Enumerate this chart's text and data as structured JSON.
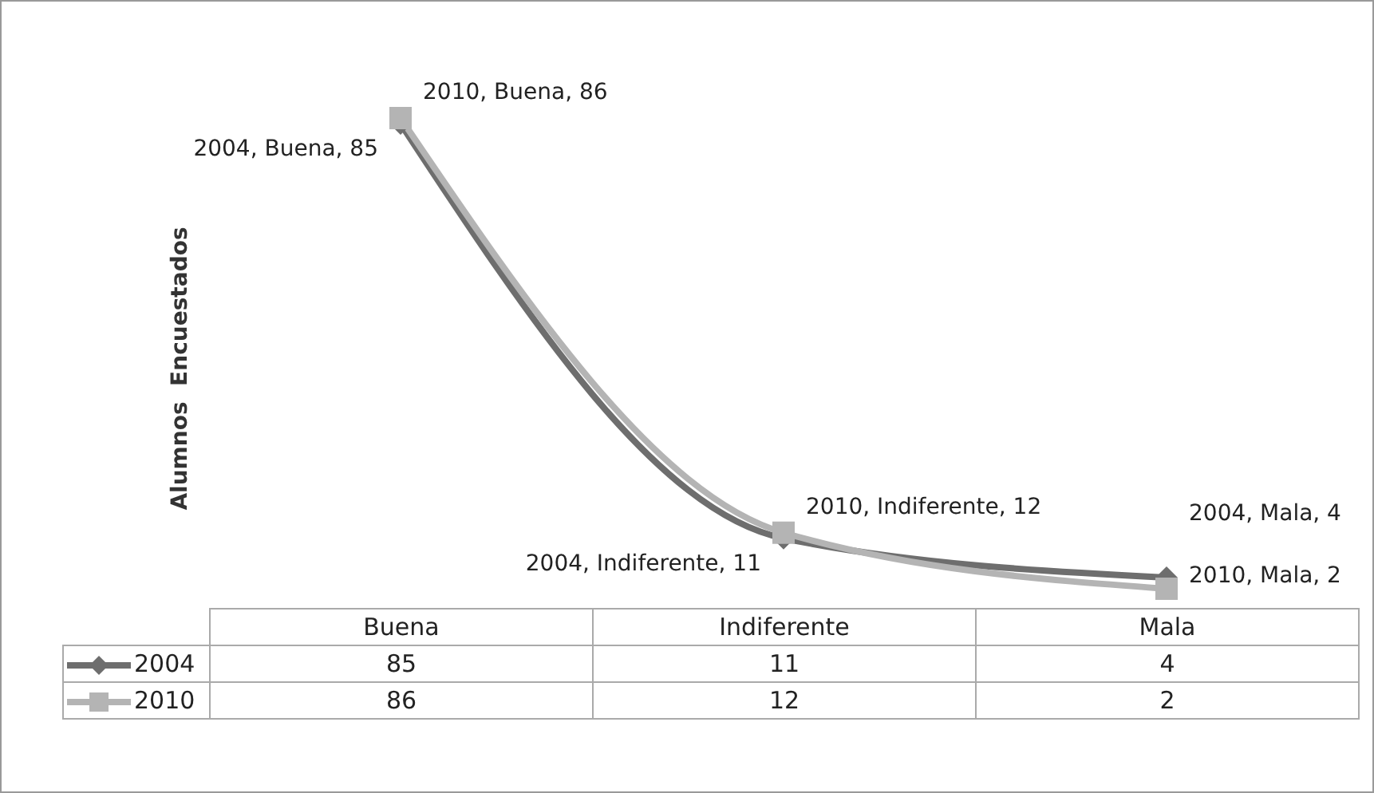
{
  "chart_data": {
    "type": "line",
    "ylabel": "Alumnos  Encuestados",
    "categories": [
      "Buena",
      "Indiferente",
      "Mala"
    ],
    "series": [
      {
        "name": "2004",
        "color": "#6e6e6e",
        "marker": "diamond",
        "values": [
          85,
          11,
          4
        ]
      },
      {
        "name": "2010",
        "color": "#b4b4b4",
        "marker": "square",
        "values": [
          86,
          12,
          2
        ]
      }
    ],
    "annotations": [
      {
        "text": "2004, Buena, 85",
        "x": "Buena",
        "y": 85
      },
      {
        "text": "2004, Indiferente, 11",
        "x": "Indiferente",
        "y": 11
      },
      {
        "text": "2004, Mala, 4",
        "x": "Mala",
        "y": 4
      },
      {
        "text": "2010, Buena, 86",
        "x": "Buena",
        "y": 86
      },
      {
        "text": "2010, Indiferente, 12",
        "x": "Indiferente",
        "y": 12
      },
      {
        "text": "2010, Mala, 2",
        "x": "Mala",
        "y": 2
      }
    ],
    "line_style": "solid",
    "data_labels": true,
    "legend": "bottom",
    "grid": false
  }
}
